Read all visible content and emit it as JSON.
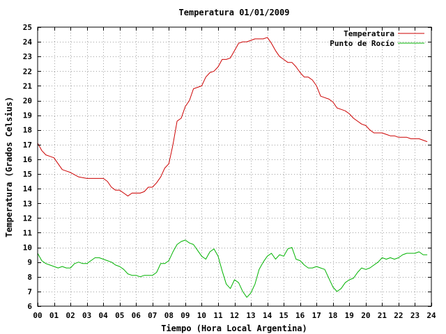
{
  "chart_data": {
    "type": "line",
    "title": "Temperatura 01/01/2009",
    "xlabel": "Tiempo (Hora Local Argentina)",
    "ylabel": "Temperatura (Grados Celsius)",
    "xlim": [
      0,
      24
    ],
    "ylim": [
      6,
      25
    ],
    "x_ticks": [
      "00",
      "01",
      "02",
      "03",
      "04",
      "05",
      "06",
      "07",
      "08",
      "09",
      "10",
      "11",
      "12",
      "13",
      "14",
      "15",
      "16",
      "17",
      "18",
      "19",
      "20",
      "21",
      "22",
      "23",
      "24"
    ],
    "y_ticks": [
      "6",
      "7",
      "8",
      "9",
      "10",
      "11",
      "12",
      "13",
      "14",
      "15",
      "16",
      "17",
      "18",
      "19",
      "20",
      "21",
      "22",
      "23",
      "24",
      "25"
    ],
    "grid": true,
    "legend_position": "top-right",
    "series": [
      {
        "name": "Temperatura",
        "color": "#cc0000",
        "x": [
          0,
          0.25,
          0.5,
          0.75,
          1.0,
          1.25,
          1.5,
          1.75,
          2.0,
          2.5,
          3.0,
          3.5,
          4.0,
          4.25,
          4.5,
          4.75,
          5.0,
          5.25,
          5.5,
          5.75,
          6.0,
          6.25,
          6.5,
          6.75,
          7.0,
          7.25,
          7.5,
          7.75,
          8.0,
          8.25,
          8.5,
          8.75,
          9.0,
          9.25,
          9.5,
          9.75,
          10.0,
          10.25,
          10.5,
          10.75,
          11.0,
          11.25,
          11.5,
          11.75,
          12.0,
          12.25,
          12.5,
          12.75,
          13.0,
          13.25,
          13.5,
          13.75,
          14.0,
          14.25,
          14.5,
          14.75,
          15.0,
          15.25,
          15.5,
          15.75,
          16.0,
          16.25,
          16.5,
          16.75,
          17.0,
          17.25,
          17.5,
          17.75,
          18.0,
          18.25,
          18.5,
          18.75,
          19.0,
          19.25,
          19.5,
          19.75,
          20.0,
          20.25,
          20.5,
          20.75,
          21.0,
          21.25,
          21.5,
          21.75,
          22.0,
          22.25,
          22.5,
          22.75,
          23.0,
          23.25,
          23.5,
          23.75
        ],
        "values": [
          17.1,
          16.6,
          16.3,
          16.2,
          16.1,
          15.7,
          15.3,
          15.2,
          15.1,
          14.8,
          14.7,
          14.7,
          14.7,
          14.5,
          14.1,
          13.9,
          13.9,
          13.7,
          13.5,
          13.7,
          13.7,
          13.7,
          13.8,
          14.1,
          14.1,
          14.4,
          14.8,
          15.4,
          15.7,
          17.0,
          18.6,
          18.8,
          19.6,
          20.0,
          20.8,
          20.9,
          21.0,
          21.6,
          21.9,
          22.0,
          22.3,
          22.8,
          22.8,
          22.9,
          23.4,
          23.9,
          24.0,
          24.0,
          24.1,
          24.2,
          24.2,
          24.2,
          24.3,
          23.9,
          23.4,
          23.0,
          22.8,
          22.6,
          22.6,
          22.3,
          21.9,
          21.6,
          21.6,
          21.4,
          21.0,
          20.3,
          20.2,
          20.1,
          19.9,
          19.5,
          19.4,
          19.3,
          19.1,
          18.8,
          18.6,
          18.4,
          18.3,
          18.0,
          17.8,
          17.8,
          17.8,
          17.7,
          17.6,
          17.6,
          17.5,
          17.5,
          17.5,
          17.4,
          17.4,
          17.4,
          17.3,
          17.2
        ]
      },
      {
        "name": "Punto de Rocío",
        "color": "#00b300",
        "x": [
          0,
          0.25,
          0.5,
          0.75,
          1.0,
          1.25,
          1.5,
          1.75,
          2.0,
          2.25,
          2.5,
          2.75,
          3.0,
          3.25,
          3.5,
          3.75,
          4.0,
          4.25,
          4.5,
          4.75,
          5.0,
          5.25,
          5.5,
          5.75,
          6.0,
          6.25,
          6.5,
          6.75,
          7.0,
          7.25,
          7.5,
          7.75,
          8.0,
          8.25,
          8.5,
          8.75,
          9.0,
          9.25,
          9.5,
          9.75,
          10.0,
          10.25,
          10.5,
          10.75,
          11.0,
          11.25,
          11.5,
          11.75,
          12.0,
          12.25,
          12.5,
          12.75,
          13.0,
          13.25,
          13.5,
          13.75,
          14.0,
          14.25,
          14.5,
          14.75,
          15.0,
          15.25,
          15.5,
          15.75,
          16.0,
          16.25,
          16.5,
          16.75,
          17.0,
          17.25,
          17.5,
          17.75,
          18.0,
          18.25,
          18.5,
          18.75,
          19.0,
          19.25,
          19.5,
          19.75,
          20.0,
          20.25,
          20.5,
          20.75,
          21.0,
          21.25,
          21.5,
          21.75,
          22.0,
          22.25,
          22.5,
          22.75,
          23.0,
          23.25,
          23.5,
          23.75
        ],
        "values": [
          9.6,
          9.1,
          8.9,
          8.8,
          8.7,
          8.6,
          8.7,
          8.6,
          8.6,
          8.9,
          9.0,
          8.9,
          8.9,
          9.1,
          9.3,
          9.3,
          9.2,
          9.1,
          9.0,
          8.8,
          8.7,
          8.5,
          8.2,
          8.1,
          8.1,
          8.0,
          8.1,
          8.1,
          8.1,
          8.3,
          8.9,
          8.9,
          9.1,
          9.7,
          10.2,
          10.4,
          10.5,
          10.3,
          10.2,
          9.8,
          9.4,
          9.2,
          9.7,
          9.9,
          9.4,
          8.4,
          7.5,
          7.2,
          7.8,
          7.6,
          7.0,
          6.6,
          6.9,
          7.5,
          8.5,
          9.0,
          9.4,
          9.6,
          9.2,
          9.5,
          9.4,
          9.9,
          10.0,
          9.2,
          9.1,
          8.8,
          8.6,
          8.6,
          8.7,
          8.6,
          8.5,
          7.9,
          7.3,
          7.0,
          7.2,
          7.6,
          7.8,
          7.9,
          8.3,
          8.6,
          8.5,
          8.6,
          8.8,
          9.0,
          9.3,
          9.2,
          9.3,
          9.2,
          9.3,
          9.5,
          9.6,
          9.6,
          9.6,
          9.7,
          9.5,
          9.5
        ]
      }
    ]
  }
}
